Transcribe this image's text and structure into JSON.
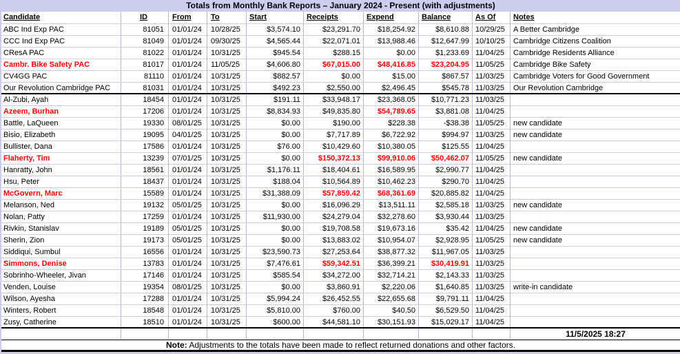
{
  "title": "Totals from Monthly Bank Reports – January 2024 - Present (with adjustments)",
  "columns": [
    {
      "key": "candidate",
      "label": "Candidate"
    },
    {
      "key": "id",
      "label": "ID"
    },
    {
      "key": "from",
      "label": "From"
    },
    {
      "key": "to",
      "label": "To"
    },
    {
      "key": "start",
      "label": "Start"
    },
    {
      "key": "receipts",
      "label": "Receipts"
    },
    {
      "key": "expend",
      "label": "Expend"
    },
    {
      "key": "balance",
      "label": "Balance"
    },
    {
      "key": "asof",
      "label": "As Of"
    },
    {
      "key": "notes",
      "label": "Notes"
    }
  ],
  "rows": [
    {
      "candidate": "ABC Ind Exp PAC",
      "id": "81051",
      "from": "01/01/24",
      "to": "10/28/25",
      "start": "$3,574.10",
      "receipts": "$23,291.70",
      "expend": "$18,254.92",
      "balance": "$8,610.88",
      "asof": "10/29/25",
      "notes": "A Better Cambridge",
      "red_name": false,
      "red_cells": [],
      "section_end": false
    },
    {
      "candidate": "CCC Ind Exp PAC",
      "id": "81049",
      "from": "01/01/24",
      "to": "09/30/25",
      "start": "$4,565.44",
      "receipts": "$22,071.01",
      "expend": "$13,988.46",
      "balance": "$12,647.99",
      "asof": "10/10/25",
      "notes": "Cambridge Citizens Coalition",
      "red_name": false,
      "red_cells": [],
      "section_end": false
    },
    {
      "candidate": "CResA PAC",
      "id": "81022",
      "from": "01/01/24",
      "to": "10/31/25",
      "start": "$945.54",
      "receipts": "$288.15",
      "expend": "$0.00",
      "balance": "$1,233.69",
      "asof": "11/04/25",
      "notes": "Cambridge Residents Alliance",
      "red_name": false,
      "red_cells": [],
      "section_end": false
    },
    {
      "candidate": "Cambr. Bike Safety PAC",
      "id": "81017",
      "from": "01/01/24",
      "to": "11/05/25",
      "start": "$4,606.80",
      "receipts": "$67,015.00",
      "expend": "$48,416.85",
      "balance": "$23,204.95",
      "asof": "11/05/25",
      "notes": "Cambridge Bike Safety",
      "red_name": true,
      "red_cells": [
        "receipts",
        "expend",
        "balance"
      ],
      "section_end": false
    },
    {
      "candidate": "CV4GG PAC",
      "id": "81110",
      "from": "01/01/24",
      "to": "10/31/25",
      "start": "$882.57",
      "receipts": "$0.00",
      "expend": "$15.00",
      "balance": "$867.57",
      "asof": "11/03/25",
      "notes": "Cambridge Voters for Good Government",
      "red_name": false,
      "red_cells": [],
      "section_end": false
    },
    {
      "candidate": "Our Revolution Cambridge PAC",
      "id": "81031",
      "from": "01/01/24",
      "to": "10/31/25",
      "start": "$492.23",
      "receipts": "$2,550.00",
      "expend": "$2,496.45",
      "balance": "$545.78",
      "asof": "11/03/25",
      "notes": "Our Revolution Cambridge",
      "red_name": false,
      "red_cells": [],
      "section_end": true
    },
    {
      "candidate": "Al-Zubi, Ayah",
      "id": "18454",
      "from": "01/01/24",
      "to": "10/31/25",
      "start": "$191.11",
      "receipts": "$33,948.17",
      "expend": "$23,368.05",
      "balance": "$10,771.23",
      "asof": "11/03/25",
      "notes": "",
      "red_name": false,
      "red_cells": [],
      "section_end": false
    },
    {
      "candidate": "Azeem, Burhan",
      "id": "17206",
      "from": "01/01/24",
      "to": "10/31/25",
      "start": "$8,834.93",
      "receipts": "$49,835.80",
      "expend": "$54,789.65",
      "balance": "$3,881.08",
      "asof": "11/04/25",
      "notes": "",
      "red_name": true,
      "red_cells": [
        "expend"
      ],
      "section_end": false
    },
    {
      "candidate": "Battle, LaQueen",
      "id": "19330",
      "from": "08/01/25",
      "to": "10/31/25",
      "start": "$0.00",
      "receipts": "$190.00",
      "expend": "$228.38",
      "balance": "-$38.38",
      "asof": "11/05/25",
      "notes": "new candidate",
      "red_name": false,
      "red_cells": [],
      "section_end": false
    },
    {
      "candidate": "Bisio, Elizabeth",
      "id": "19095",
      "from": "04/01/25",
      "to": "10/31/25",
      "start": "$0.00",
      "receipts": "$7,717.89",
      "expend": "$6,722.92",
      "balance": "$994.97",
      "asof": "11/03/25",
      "notes": "new candidate",
      "red_name": false,
      "red_cells": [],
      "section_end": false
    },
    {
      "candidate": "Bullister, Dana",
      "id": "17586",
      "from": "01/01/24",
      "to": "10/31/25",
      "start": "$76.00",
      "receipts": "$10,429.60",
      "expend": "$10,380.05",
      "balance": "$125.55",
      "asof": "11/04/25",
      "notes": "",
      "red_name": false,
      "red_cells": [],
      "section_end": false
    },
    {
      "candidate": "Flaherty, Tim",
      "id": "13239",
      "from": "07/01/25",
      "to": "10/31/25",
      "start": "$0.00",
      "receipts": "$150,372.13",
      "expend": "$99,910.06",
      "balance": "$50,462.07",
      "asof": "11/05/25",
      "notes": "new candidate",
      "red_name": true,
      "red_cells": [
        "receipts",
        "expend",
        "balance"
      ],
      "section_end": false
    },
    {
      "candidate": "Hanratty, John",
      "id": "18561",
      "from": "01/01/24",
      "to": "10/31/25",
      "start": "$1,176.11",
      "receipts": "$18,404.61",
      "expend": "$16,589.95",
      "balance": "$2,990.77",
      "asof": "11/04/25",
      "notes": "",
      "red_name": false,
      "red_cells": [],
      "section_end": false
    },
    {
      "candidate": "Hsu, Peter",
      "id": "18437",
      "from": "01/01/24",
      "to": "10/31/25",
      "start": "$188.04",
      "receipts": "$10,564.89",
      "expend": "$10,462.23",
      "balance": "$290.70",
      "asof": "11/04/25",
      "notes": "",
      "red_name": false,
      "red_cells": [],
      "section_end": false
    },
    {
      "candidate": "McGovern, Marc",
      "id": "15589",
      "from": "01/01/24",
      "to": "10/31/25",
      "start": "$31,388.09",
      "receipts": "$57,859.42",
      "expend": "$68,361.69",
      "balance": "$20,885.82",
      "asof": "11/04/25",
      "notes": "",
      "red_name": true,
      "red_cells": [
        "receipts",
        "expend"
      ],
      "section_end": false
    },
    {
      "candidate": "Melanson, Ned",
      "id": "19132",
      "from": "05/01/25",
      "to": "10/31/25",
      "start": "$0.00",
      "receipts": "$16,096.29",
      "expend": "$13,511.11",
      "balance": "$2,585.18",
      "asof": "11/03/25",
      "notes": "new candidate",
      "red_name": false,
      "red_cells": [],
      "section_end": false
    },
    {
      "candidate": "Nolan, Patty",
      "id": "17259",
      "from": "01/01/24",
      "to": "10/31/25",
      "start": "$11,930.00",
      "receipts": "$24,279.04",
      "expend": "$32,278.60",
      "balance": "$3,930.44",
      "asof": "11/03/25",
      "notes": "",
      "red_name": false,
      "red_cells": [],
      "section_end": false
    },
    {
      "candidate": "Rivkin, Stanislav",
      "id": "19189",
      "from": "05/01/25",
      "to": "10/31/25",
      "start": "$0.00",
      "receipts": "$19,708.58",
      "expend": "$19,673.16",
      "balance": "$35.42",
      "asof": "11/04/25",
      "notes": "new candidate",
      "red_name": false,
      "red_cells": [],
      "section_end": false
    },
    {
      "candidate": "Sherin, Zion",
      "id": "19173",
      "from": "05/01/25",
      "to": "10/31/25",
      "start": "$0.00",
      "receipts": "$13,883.02",
      "expend": "$10,954.07",
      "balance": "$2,928.95",
      "asof": "11/05/25",
      "notes": "new candidate",
      "red_name": false,
      "red_cells": [],
      "section_end": false
    },
    {
      "candidate": "Siddiqui, Sumbul",
      "id": "16556",
      "from": "01/01/24",
      "to": "10/31/25",
      "start": "$23,590.73",
      "receipts": "$27,253.64",
      "expend": "$38,877.32",
      "balance": "$11,967.05",
      "asof": "11/03/25",
      "notes": "",
      "red_name": false,
      "red_cells": [],
      "section_end": false
    },
    {
      "candidate": "Simmons, Denise",
      "id": "13783",
      "from": "01/01/24",
      "to": "10/31/25",
      "start": "$7,476.61",
      "receipts": "$59,342.51",
      "expend": "$36,399.21",
      "balance": "$30,419.91",
      "asof": "11/03/25",
      "notes": "",
      "red_name": true,
      "red_cells": [
        "receipts",
        "balance"
      ],
      "section_end": false
    },
    {
      "candidate": "Sobrinho-Wheeler, Jivan",
      "id": "17146",
      "from": "01/01/24",
      "to": "10/31/25",
      "start": "$585.54",
      "receipts": "$34,272.00",
      "expend": "$32,714.21",
      "balance": "$2,143.33",
      "asof": "11/03/25",
      "notes": "",
      "red_name": false,
      "red_cells": [],
      "section_end": false
    },
    {
      "candidate": "Venden, Louise",
      "id": "19354",
      "from": "08/01/25",
      "to": "10/31/25",
      "start": "$0.00",
      "receipts": "$3,860.91",
      "expend": "$2,220.06",
      "balance": "$1,640.85",
      "asof": "11/03/25",
      "notes": "write-in candidate",
      "red_name": false,
      "red_cells": [],
      "section_end": false
    },
    {
      "candidate": "Wilson, Ayesha",
      "id": "17288",
      "from": "01/01/24",
      "to": "10/31/25",
      "start": "$5,994.24",
      "receipts": "$26,452.55",
      "expend": "$22,655.68",
      "balance": "$9,791.11",
      "asof": "11/04/25",
      "notes": "",
      "red_name": false,
      "red_cells": [],
      "section_end": false
    },
    {
      "candidate": "Winters, Robert",
      "id": "18548",
      "from": "01/01/24",
      "to": "10/31/25",
      "start": "$5,810.00",
      "receipts": "$760.00",
      "expend": "$40.50",
      "balance": "$6,529.50",
      "asof": "11/04/25",
      "notes": "",
      "red_name": false,
      "red_cells": [],
      "section_end": false
    },
    {
      "candidate": "Zusy, Catherine",
      "id": "18510",
      "from": "01/01/24",
      "to": "10/31/25",
      "start": "$600.00",
      "receipts": "$44,581.10",
      "expend": "$30,151.93",
      "balance": "$15,029.17",
      "asof": "11/04/25",
      "notes": "",
      "red_name": false,
      "red_cells": [],
      "section_end": true
    }
  ],
  "footer": {
    "timestamp": "11/5/2025 18:27",
    "note_label": "Note:",
    "note_text": " Adjustments to the totals have been made to reflect returned donations and other factors."
  },
  "colors": {
    "red": "#ff0000",
    "lavender": "#cdcdf0",
    "grid_vertical": "#b5b5d9",
    "grid_horizontal": "#c9c9e8"
  }
}
